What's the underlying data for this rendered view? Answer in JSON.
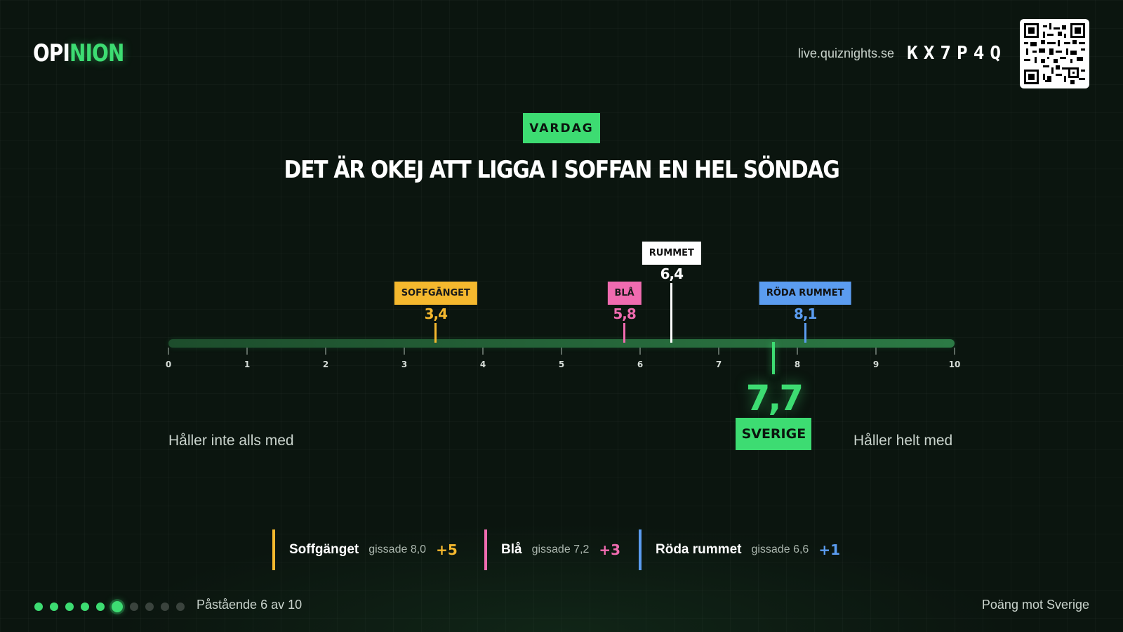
{
  "header": {
    "logo_part1": "OPI",
    "logo_part2": "NION",
    "join_url": "live.quiznights.se",
    "join_code": "KX7P4Q"
  },
  "question": {
    "category": "VARDAG",
    "statement": "DET ÄR OKEJ ATT LIGGA I SOFFAN EN HEL SÖNDAG"
  },
  "scale": {
    "min": 0,
    "max": 10,
    "ticks": [
      "0",
      "1",
      "2",
      "3",
      "4",
      "5",
      "6",
      "7",
      "8",
      "9",
      "10"
    ],
    "left_anchor": "Håller inte alls med",
    "right_anchor": "Håller helt med"
  },
  "markers": [
    {
      "label": "SOFFGÄNGET",
      "value": 3.4,
      "display": "3,4",
      "color": "#f5b82e",
      "text_color": "#1a1a1a",
      "tier": "low"
    },
    {
      "label": "BLÅ",
      "value": 5.8,
      "display": "5,8",
      "color": "#f06bb0",
      "text_color": "#1a1a1a",
      "tier": "low"
    },
    {
      "label": "RUMMET",
      "value": 6.4,
      "display": "6,4",
      "color": "#ffffff",
      "text_color": "#111111",
      "tier": "high"
    },
    {
      "label": "RÖDA RUMMET",
      "value": 8.1,
      "display": "8,1",
      "color": "#5b9cf0",
      "text_color": "#111111",
      "tier": "low"
    }
  ],
  "sverige": {
    "label": "SVERIGE",
    "value": 7.7,
    "display": "7,7"
  },
  "scores": [
    {
      "team": "Soffgänget",
      "guess": "gissade 8,0",
      "points": "+5",
      "color": "#f5b82e"
    },
    {
      "team": "Blå",
      "guess": "gissade 7,2",
      "points": "+3",
      "color": "#f06bb0"
    },
    {
      "team": "Röda rummet",
      "guess": "gissade 6,6",
      "points": "+1",
      "color": "#5b9cf0"
    }
  ],
  "footer": {
    "progress_text": "Påstående 6 av 10",
    "current": 6,
    "total": 10,
    "right_text": "Poäng mot Sverige"
  }
}
